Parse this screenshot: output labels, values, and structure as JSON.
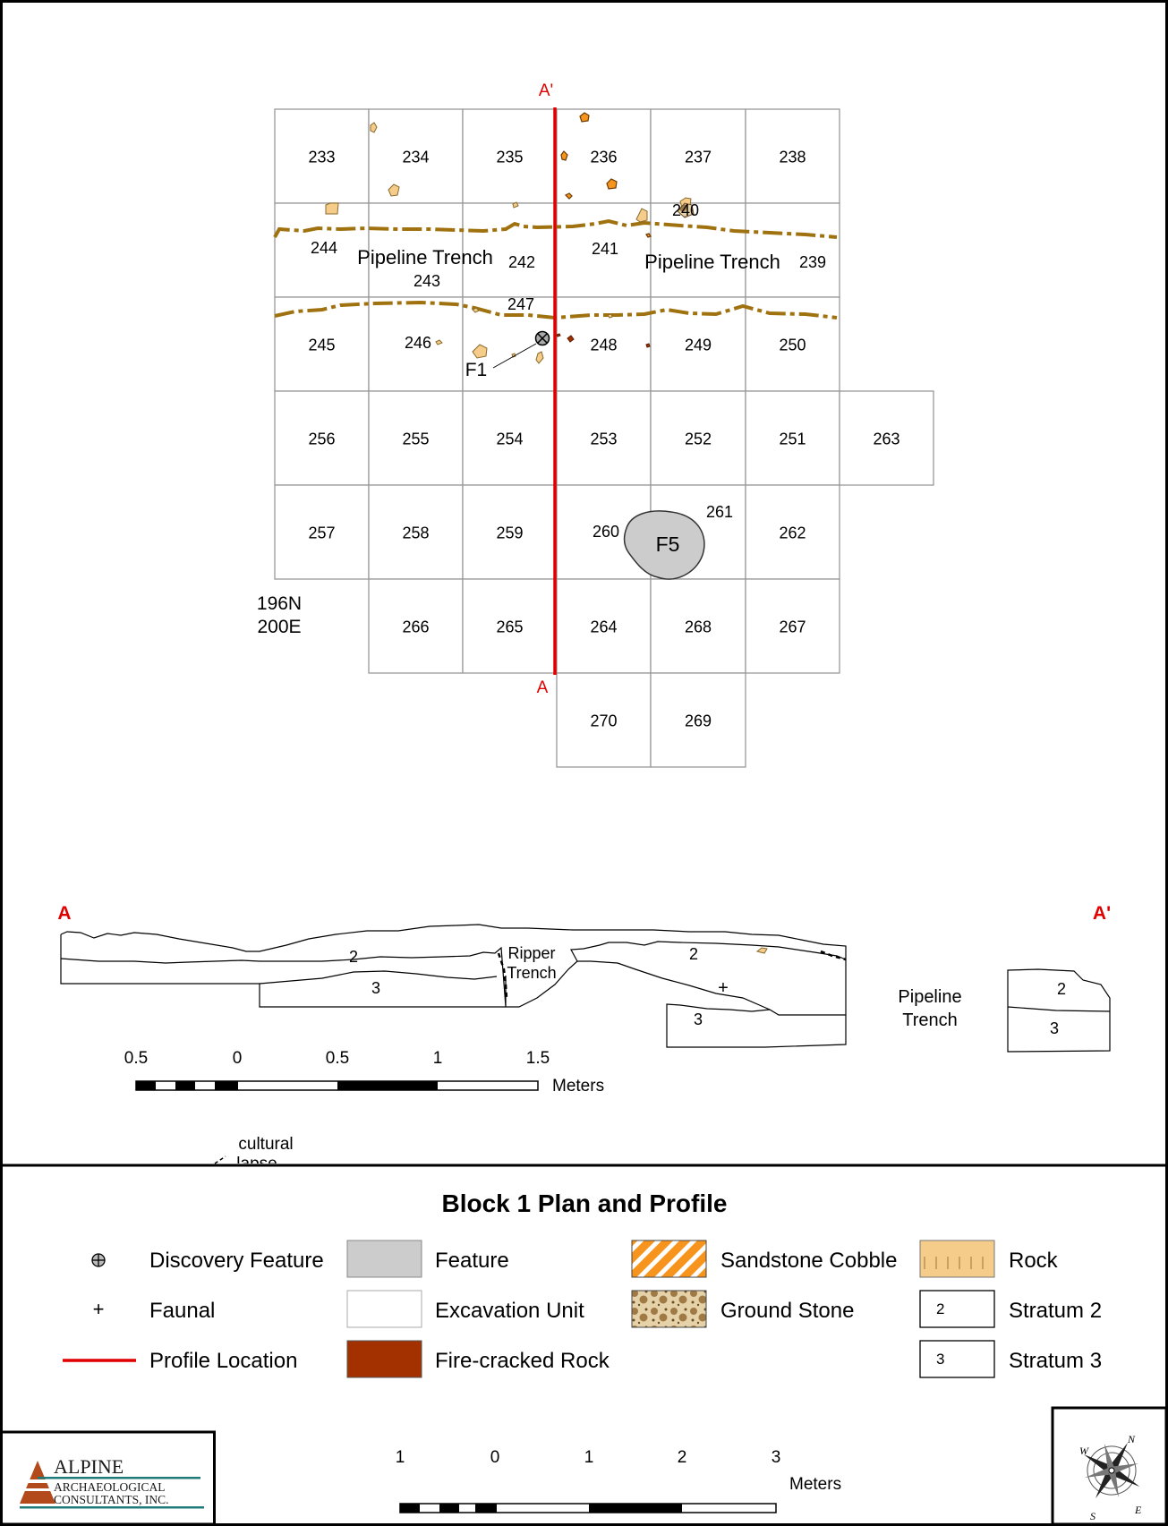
{
  "map": {
    "units": [
      {
        "id": "233"
      },
      {
        "id": "234"
      },
      {
        "id": "235"
      },
      {
        "id": "236"
      },
      {
        "id": "237"
      },
      {
        "id": "238"
      },
      {
        "id": "244"
      },
      {
        "id": "243"
      },
      {
        "id": "242"
      },
      {
        "id": "241"
      },
      {
        "id": "240"
      },
      {
        "id": "239"
      },
      {
        "id": "245"
      },
      {
        "id": "246"
      },
      {
        "id": "247"
      },
      {
        "id": "248"
      },
      {
        "id": "249"
      },
      {
        "id": "250"
      },
      {
        "id": "256"
      },
      {
        "id": "255"
      },
      {
        "id": "254"
      },
      {
        "id": "253"
      },
      {
        "id": "252"
      },
      {
        "id": "251"
      },
      {
        "id": "263"
      },
      {
        "id": "257"
      },
      {
        "id": "258"
      },
      {
        "id": "259"
      },
      {
        "id": "260"
      },
      {
        "id": "261"
      },
      {
        "id": "262"
      },
      {
        "id": "266"
      },
      {
        "id": "265"
      },
      {
        "id": "264"
      },
      {
        "id": "268"
      },
      {
        "id": "267"
      },
      {
        "id": "270"
      },
      {
        "id": "269"
      }
    ],
    "pipeline_trench_label": "Pipeline Trench",
    "feature_f1_label": "F1",
    "feature_f5_label": "F5",
    "datum": {
      "north": "196N",
      "east": "200E"
    },
    "profile_start": "A",
    "profile_end": "A'"
  },
  "profile": {
    "start": "A",
    "end": "A'",
    "stratum_2": "2",
    "stratum_3": "3",
    "ripper_trench": [
      "Ripper",
      "Trench"
    ],
    "faunal_mark": "+",
    "pipeline_trench": [
      "Pipeline",
      "Trench"
    ],
    "cultural_lapse": [
      "cultural",
      "lapse"
    ]
  },
  "profile_scale": {
    "ticks": [
      "0.5",
      "0",
      "0.5",
      "1",
      "1.5"
    ],
    "unit": "Meters"
  },
  "title": "Block 1 Plan and Profile",
  "legend": [
    {
      "label": "Discovery Feature",
      "symbol": "circled-cross-icon"
    },
    {
      "label": "Faunal",
      "symbol": "plus-icon"
    },
    {
      "label": "Profile Location",
      "symbol": "red-line"
    },
    {
      "label": "Feature",
      "symbol": "gray-box",
      "color": "#cccccc"
    },
    {
      "label": "Excavation Unit",
      "symbol": "white-box"
    },
    {
      "label": "Fire-cracked Rock",
      "symbol": "rust-box",
      "color": "#a33100"
    },
    {
      "label": "Sandstone Cobble",
      "symbol": "orange-hatch-box",
      "color": "#f7941d"
    },
    {
      "label": "Ground Stone",
      "symbol": "speckled-box",
      "color": "#b08850"
    },
    {
      "label": "Rock",
      "symbol": "tan-box",
      "color": "#f5cc8a"
    },
    {
      "label": "Stratum 2",
      "symbol": "numbered-box",
      "box_text": "2"
    },
    {
      "label": "Stratum 3",
      "symbol": "numbered-box",
      "box_text": "3"
    }
  ],
  "plan_scale": {
    "ticks": [
      "1",
      "0",
      "1",
      "2",
      "3"
    ],
    "unit": "Meters"
  },
  "logo": {
    "line1": "ALPINE",
    "line2": "ARCHAEOLOGICAL",
    "line3": "CONSULTANTS, INC."
  },
  "north_arrow": {
    "n": "N",
    "s": "S",
    "e": "E",
    "w": "W"
  },
  "colors": {
    "profile_line": "#e10000",
    "pipeline_trench": "#a0720f",
    "feature_fill": "#cccccc",
    "rock": "#f5cc8a",
    "sandstone_cobble": "#f7941d",
    "fire_cracked_rock": "#a33100"
  }
}
